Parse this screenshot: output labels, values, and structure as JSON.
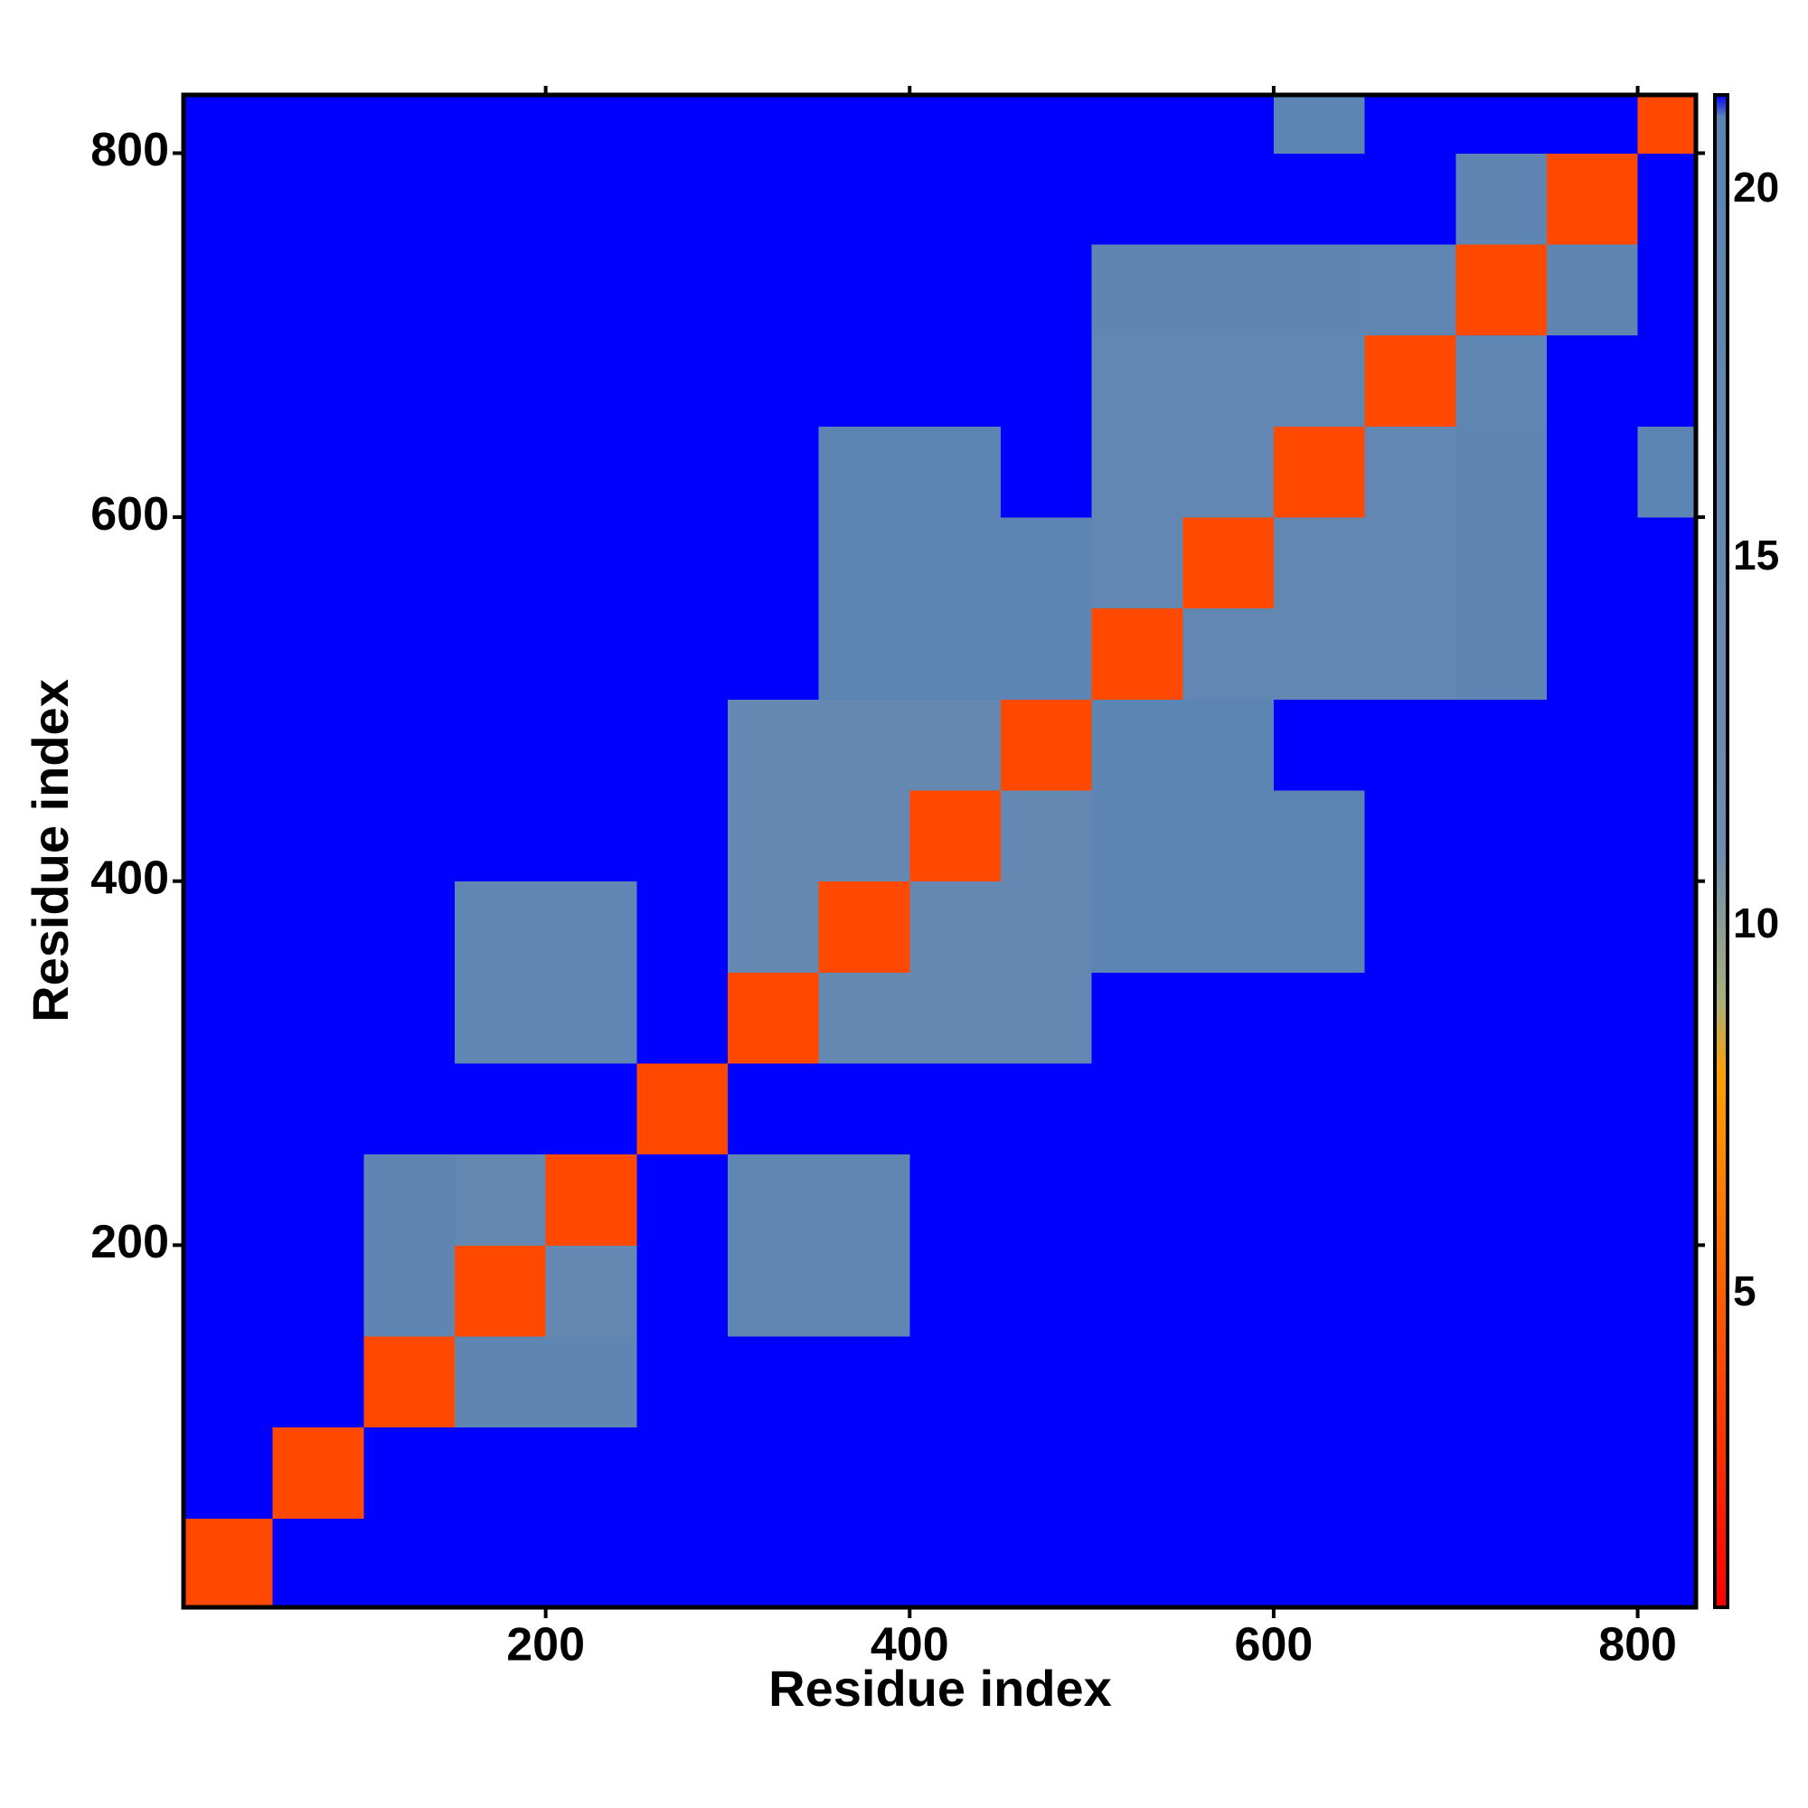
{
  "chart_data": {
    "type": "heatmap",
    "xlabel": "Residue index",
    "ylabel": "Residue index",
    "bins": [
      1,
      50,
      100,
      150,
      200,
      250,
      300,
      350,
      400,
      450,
      500,
      550,
      600,
      650,
      700,
      750,
      800,
      832
    ],
    "xlim": [
      1,
      832
    ],
    "ylim": [
      1,
      832
    ],
    "xticks": [
      200,
      400,
      600,
      800
    ],
    "yticks": [
      200,
      400,
      600,
      800
    ],
    "z": [
      [
        4,
        21.3,
        21.3,
        21.3,
        21.3,
        21.3,
        21.3,
        21.3,
        21.3,
        21.3,
        21.3,
        21.3,
        21.3,
        21.3,
        21.3,
        21.3,
        21.3
      ],
      [
        21.3,
        4,
        21.3,
        21.3,
        21.3,
        21.3,
        21.3,
        21.3,
        21.3,
        21.3,
        21.3,
        21.3,
        21.3,
        21.3,
        21.3,
        21.3,
        21.3
      ],
      [
        21.3,
        21.3,
        4,
        19,
        19,
        21.3,
        21.3,
        21.3,
        21.3,
        21.3,
        21.3,
        21.3,
        21.3,
        21.3,
        21.3,
        21.3,
        21.3
      ],
      [
        21.3,
        21.3,
        19,
        4,
        16,
        21.3,
        18,
        18,
        21.3,
        21.3,
        21.3,
        21.3,
        21.3,
        21.3,
        21.3,
        21.3,
        21.3
      ],
      [
        21.3,
        21.3,
        19,
        16,
        4,
        21.3,
        18,
        18,
        21.3,
        21.3,
        21.3,
        21.3,
        21.3,
        21.3,
        21.3,
        21.3,
        21.3
      ],
      [
        21.3,
        21.3,
        21.3,
        21.3,
        21.3,
        4,
        21.3,
        21.3,
        21.3,
        21.3,
        21.3,
        21.3,
        21.3,
        21.3,
        21.3,
        21.3,
        21.3
      ],
      [
        21.3,
        21.3,
        21.3,
        18,
        18,
        21.3,
        4,
        16,
        16,
        16,
        21.3,
        21.3,
        21.3,
        21.3,
        21.3,
        21.3,
        21.3
      ],
      [
        21.3,
        21.3,
        21.3,
        18,
        18,
        21.3,
        16,
        4,
        16,
        16,
        20,
        20,
        20,
        21.3,
        21.3,
        21.3,
        21.3
      ],
      [
        21.3,
        21.3,
        21.3,
        21.3,
        21.3,
        21.3,
        16,
        16,
        4,
        16,
        20,
        20,
        20,
        21.3,
        21.3,
        21.3,
        21.3
      ],
      [
        21.3,
        21.3,
        21.3,
        21.3,
        21.3,
        21.3,
        16,
        16,
        16,
        4,
        20,
        20,
        21.3,
        21.3,
        21.3,
        21.3,
        21.3
      ],
      [
        21.3,
        21.3,
        21.3,
        21.3,
        21.3,
        21.3,
        21.3,
        20,
        20,
        20,
        4,
        17,
        17,
        17,
        19,
        21.3,
        21.3
      ],
      [
        21.3,
        21.3,
        21.3,
        21.3,
        21.3,
        21.3,
        21.3,
        20,
        20,
        20,
        17,
        4,
        17,
        17,
        19,
        21.3,
        21.3
      ],
      [
        21.3,
        21.3,
        21.3,
        21.3,
        21.3,
        21.3,
        21.3,
        20,
        20,
        21.3,
        17,
        17,
        4,
        17,
        19,
        21.3,
        20
      ],
      [
        21.3,
        21.3,
        21.3,
        21.3,
        21.3,
        21.3,
        21.3,
        21.3,
        21.3,
        21.3,
        17,
        17,
        17,
        4,
        18,
        21.3,
        21.3
      ],
      [
        21.3,
        21.3,
        21.3,
        21.3,
        21.3,
        21.3,
        21.3,
        21.3,
        21.3,
        21.3,
        19,
        19,
        19,
        18,
        4,
        19,
        21.3
      ],
      [
        21.3,
        21.3,
        21.3,
        21.3,
        21.3,
        21.3,
        21.3,
        21.3,
        21.3,
        21.3,
        21.3,
        21.3,
        21.3,
        21.3,
        19,
        4,
        21.3
      ],
      [
        21.3,
        21.3,
        21.3,
        21.3,
        21.3,
        21.3,
        21.3,
        21.3,
        21.3,
        21.3,
        21.3,
        21.3,
        20,
        21.3,
        21.3,
        21.3,
        4
      ]
    ],
    "clim": [
      0.75,
      21.3
    ],
    "cticks": [
      5,
      10,
      15,
      20
    ],
    "colorscale": [
      [
        0.75,
        "#ff0000"
      ],
      [
        8,
        "#ffa000"
      ],
      [
        9,
        "#a8b07a"
      ],
      [
        11,
        "#6d8cb0"
      ],
      [
        21,
        "#5b84b4"
      ],
      [
        21.3,
        "#0000ff"
      ]
    ]
  }
}
